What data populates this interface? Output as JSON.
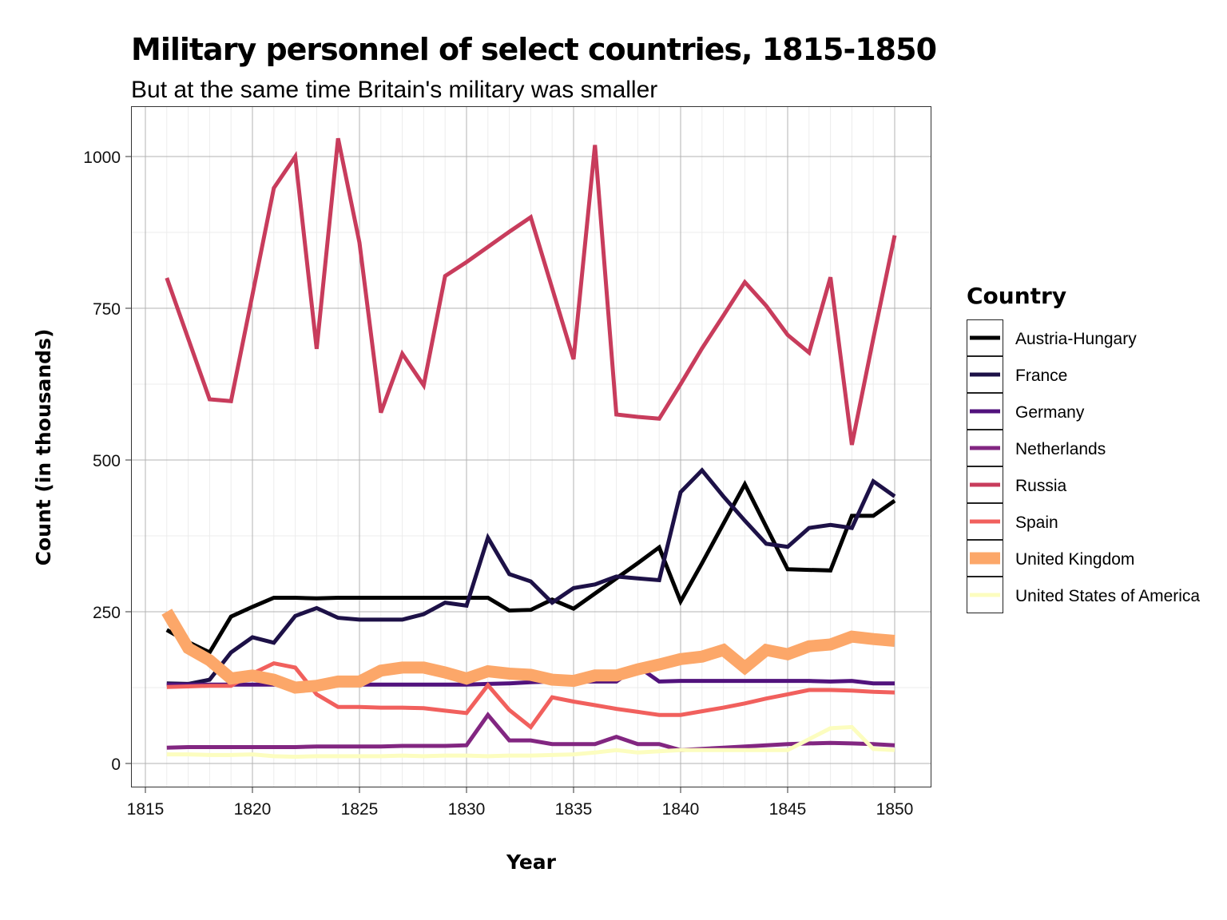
{
  "chart_data": {
    "type": "line",
    "title": "Military personnel of select countries, 1815-1850",
    "subtitle": "But at the same time Britain's military was smaller",
    "xlabel": "Year",
    "ylabel": "Count (in thousands)",
    "xlim": [
      1815,
      1850
    ],
    "ylim": [
      0,
      1050
    ],
    "x_ticks": [
      1815,
      1820,
      1825,
      1830,
      1835,
      1840,
      1845,
      1850
    ],
    "y_ticks": [
      0,
      250,
      500,
      750,
      1000
    ],
    "grid": true,
    "legend": {
      "title": "Country",
      "position": "right"
    },
    "x": [
      1816,
      1817,
      1818,
      1819,
      1820,
      1821,
      1822,
      1823,
      1824,
      1825,
      1826,
      1827,
      1828,
      1829,
      1830,
      1831,
      1832,
      1833,
      1834,
      1835,
      1836,
      1837,
      1838,
      1839,
      1840,
      1841,
      1842,
      1843,
      1844,
      1845,
      1846,
      1847,
      1848,
      1849,
      1850
    ],
    "series": [
      {
        "name": "Austria-Hungary",
        "color": "#000000",
        "width": 5,
        "values": [
          220,
          200,
          183,
          242,
          258,
          273,
          273,
          272,
          273,
          273,
          273,
          273,
          273,
          273,
          273,
          273,
          252,
          253,
          270,
          255,
          280,
          305,
          330,
          356,
          267,
          330,
          395,
          460,
          390,
          320,
          319,
          318,
          408,
          408,
          433
        ]
      },
      {
        "name": "France",
        "color": "#1d1147",
        "width": 5,
        "values": [
          132,
          131,
          138,
          183,
          208,
          199,
          243,
          256,
          240,
          237,
          237,
          237,
          246,
          265,
          260,
          372,
          312,
          300,
          265,
          289,
          295,
          308,
          305,
          302,
          447,
          483,
          440,
          400,
          362,
          357,
          388,
          393,
          388,
          465,
          440
        ]
      },
      {
        "name": "Germany",
        "color": "#51127c",
        "width": 5,
        "values": [
          130,
          130,
          130,
          130,
          130,
          130,
          130,
          130,
          130,
          130,
          130,
          130,
          130,
          130,
          130,
          131,
          132,
          134,
          135,
          135,
          135,
          135,
          160,
          135,
          136,
          136,
          136,
          136,
          136,
          136,
          136,
          135,
          136,
          132,
          132
        ]
      },
      {
        "name": "Netherlands",
        "color": "#822681",
        "width": 5,
        "values": [
          26,
          27,
          27,
          27,
          27,
          27,
          27,
          28,
          28,
          28,
          28,
          29,
          29,
          29,
          30,
          80,
          38,
          38,
          32,
          32,
          32,
          44,
          32,
          32,
          22,
          24,
          26,
          28,
          30,
          32,
          33,
          34,
          33,
          32,
          30
        ]
      },
      {
        "name": "Russia",
        "color": "#c83c5c",
        "width": 5,
        "values": [
          800,
          700,
          600,
          597,
          772,
          948,
          1000,
          683,
          1030,
          858,
          578,
          675,
          623,
          803,
          826,
          851,
          876,
          900,
          783,
          666,
          1019,
          575,
          571,
          568,
          625,
          684,
          738,
          793,
          754,
          706,
          677,
          801,
          525,
          700,
          870
        ]
      },
      {
        "name": "Spain",
        "color": "#f1605d",
        "width": 5,
        "values": [
          126,
          127,
          128,
          128,
          148,
          165,
          158,
          114,
          93,
          93,
          92,
          92,
          91,
          87,
          83,
          129,
          88,
          60,
          109,
          102,
          96,
          90,
          85,
          80,
          80,
          86,
          92,
          99,
          107,
          114,
          121,
          121,
          120,
          118,
          117
        ]
      },
      {
        "name": "United Kingdom",
        "color": "#fca769",
        "width": 15,
        "values": [
          250,
          190,
          170,
          140,
          145,
          138,
          125,
          128,
          135,
          135,
          153,
          158,
          158,
          150,
          140,
          152,
          148,
          146,
          138,
          136,
          145,
          145,
          155,
          163,
          172,
          176,
          187,
          158,
          187,
          180,
          193,
          196,
          209,
          205,
          202
        ]
      },
      {
        "name": "United States of America",
        "color": "#fcfdbf",
        "width": 5,
        "values": [
          15,
          15,
          14,
          14,
          15,
          12,
          11,
          12,
          12,
          12,
          12,
          13,
          12,
          13,
          13,
          12,
          13,
          13,
          14,
          15,
          18,
          22,
          18,
          20,
          22,
          22,
          22,
          22,
          22,
          22,
          40,
          58,
          60,
          24,
          22
        ]
      }
    ]
  }
}
